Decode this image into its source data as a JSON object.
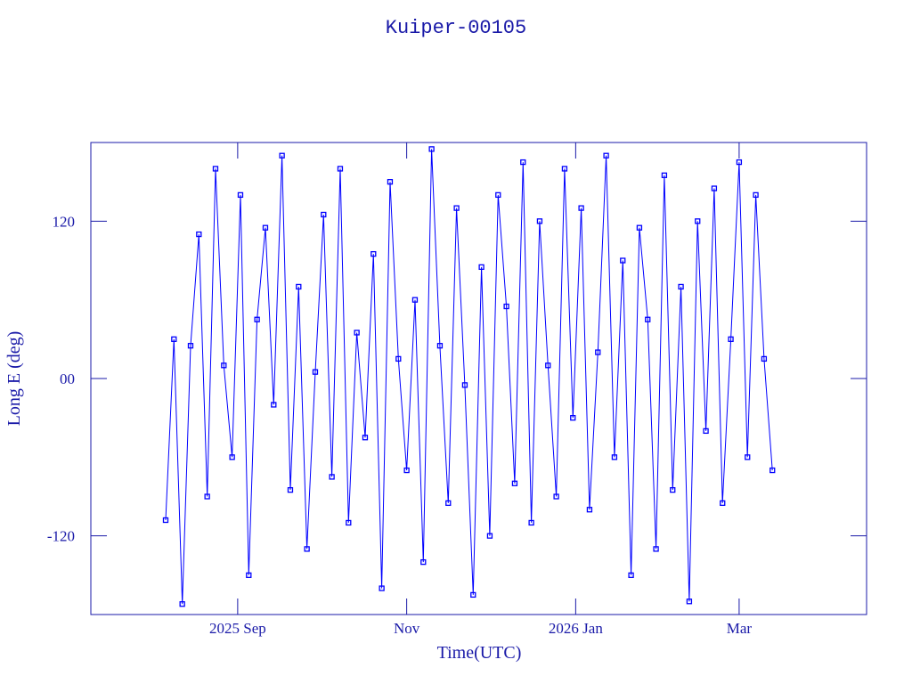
{
  "chart_data": {
    "type": "line",
    "title": "Kuiper-00105",
    "x_label": "Time(UTC)",
    "y_label": "Long E (deg)",
    "xlim": [
      "2025-07-10",
      "2026-04-16"
    ],
    "xticks": [
      {
        "value": "2025-09-01",
        "label": "2025 Sep"
      },
      {
        "value": "2025-11-01",
        "label": "Nov"
      },
      {
        "value": "2026-01-01",
        "label": "2026 Jan"
      },
      {
        "value": "2026-03-01",
        "label": "Mar"
      }
    ],
    "ylim": [
      -180,
      180
    ],
    "yticks": [
      -120,
      {
        "value": 0,
        "label": "00"
      },
      120
    ],
    "markers": true,
    "series": [
      {
        "color": "#0000ff",
        "x": [
          "2025-08-06",
          "2025-08-09",
          "2025-08-12",
          "2025-08-15",
          "2025-08-18",
          "2025-08-21",
          "2025-08-24",
          "2025-08-27",
          "2025-08-30",
          "2025-09-02",
          "2025-09-05",
          "2025-09-08",
          "2025-09-11",
          "2025-09-14",
          "2025-09-17",
          "2025-09-20",
          "2025-09-23",
          "2025-09-26",
          "2025-09-29",
          "2025-10-02",
          "2025-10-05",
          "2025-10-08",
          "2025-10-11",
          "2025-10-14",
          "2025-10-17",
          "2025-10-20",
          "2025-10-23",
          "2025-10-26",
          "2025-10-29",
          "2025-11-01",
          "2025-11-04",
          "2025-11-07",
          "2025-11-10",
          "2025-11-13",
          "2025-11-16",
          "2025-11-19",
          "2025-11-22",
          "2025-11-25",
          "2025-11-28",
          "2025-12-01",
          "2025-12-04",
          "2025-12-07",
          "2025-12-10",
          "2025-12-13",
          "2025-12-16",
          "2025-12-19",
          "2025-12-22",
          "2025-12-25",
          "2025-12-28",
          "2025-12-31",
          "2026-01-03",
          "2026-01-06",
          "2026-01-09",
          "2026-01-12",
          "2026-01-15",
          "2026-01-18",
          "2026-01-21",
          "2026-01-24",
          "2026-01-27",
          "2026-01-30",
          "2026-02-02",
          "2026-02-05",
          "2026-02-08",
          "2026-02-11",
          "2026-02-14",
          "2026-02-17",
          "2026-02-20",
          "2026-02-23",
          "2026-02-26",
          "2026-03-01",
          "2026-03-04",
          "2026-03-07",
          "2026-03-10",
          "2026-03-13"
        ],
        "values": [
          -108,
          30,
          -172,
          25,
          110,
          -90,
          160,
          10,
          -60,
          140,
          -150,
          45,
          115,
          -20,
          170,
          -85,
          70,
          -130,
          5,
          125,
          -75,
          160,
          -110,
          35,
          -45,
          95,
          -160,
          150,
          15,
          -70,
          60,
          -140,
          175,
          25,
          -95,
          130,
          -5,
          -165,
          85,
          -120,
          140,
          55,
          -80,
          165,
          -110,
          120,
          10,
          -90,
          160,
          -30,
          130,
          -100,
          20,
          170,
          -60,
          90,
          -150,
          115,
          45,
          -130,
          155,
          -85,
          70,
          -170,
          120,
          -40,
          145,
          -95,
          30,
          165,
          -60,
          140,
          15,
          -70
        ]
      }
    ]
  }
}
